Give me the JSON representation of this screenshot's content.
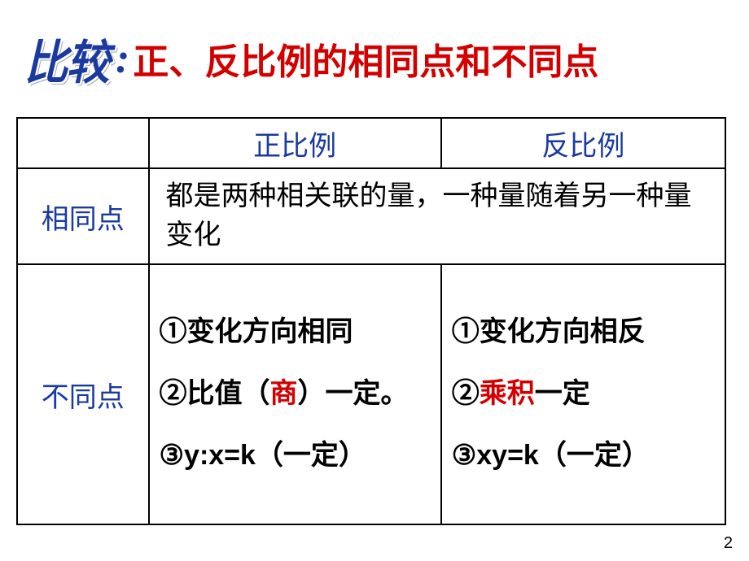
{
  "title": {
    "prefix": "比较",
    "colon": ":",
    "main": "正、反比例的相同点和不同点"
  },
  "table": {
    "header": {
      "direct": "正比例",
      "inverse": "反比例"
    },
    "same": {
      "label": "相同点",
      "content": "都是两种相关联的量，一种量随着另一种量变化"
    },
    "diff": {
      "label": "不同点",
      "direct": {
        "item1": "①变化方向相同",
        "item2_a": "②比值（",
        "item2_b": "商",
        "item2_c": "）一定。",
        "item3_a": "③",
        "item3_b": "y:x=k",
        "item3_c": "（一定）"
      },
      "inverse": {
        "item1": "①变化方向相反",
        "item2_a": "②",
        "item2_b": "乘积",
        "item2_c": "一定",
        "item3_a": "③",
        "item3_b": "xy=k",
        "item3_c": "（一定）"
      }
    }
  },
  "pageNumber": "2",
  "colors": {
    "blue": "#1a3a9e",
    "red": "#d40000",
    "black": "#000000",
    "background": "#ffffff"
  }
}
